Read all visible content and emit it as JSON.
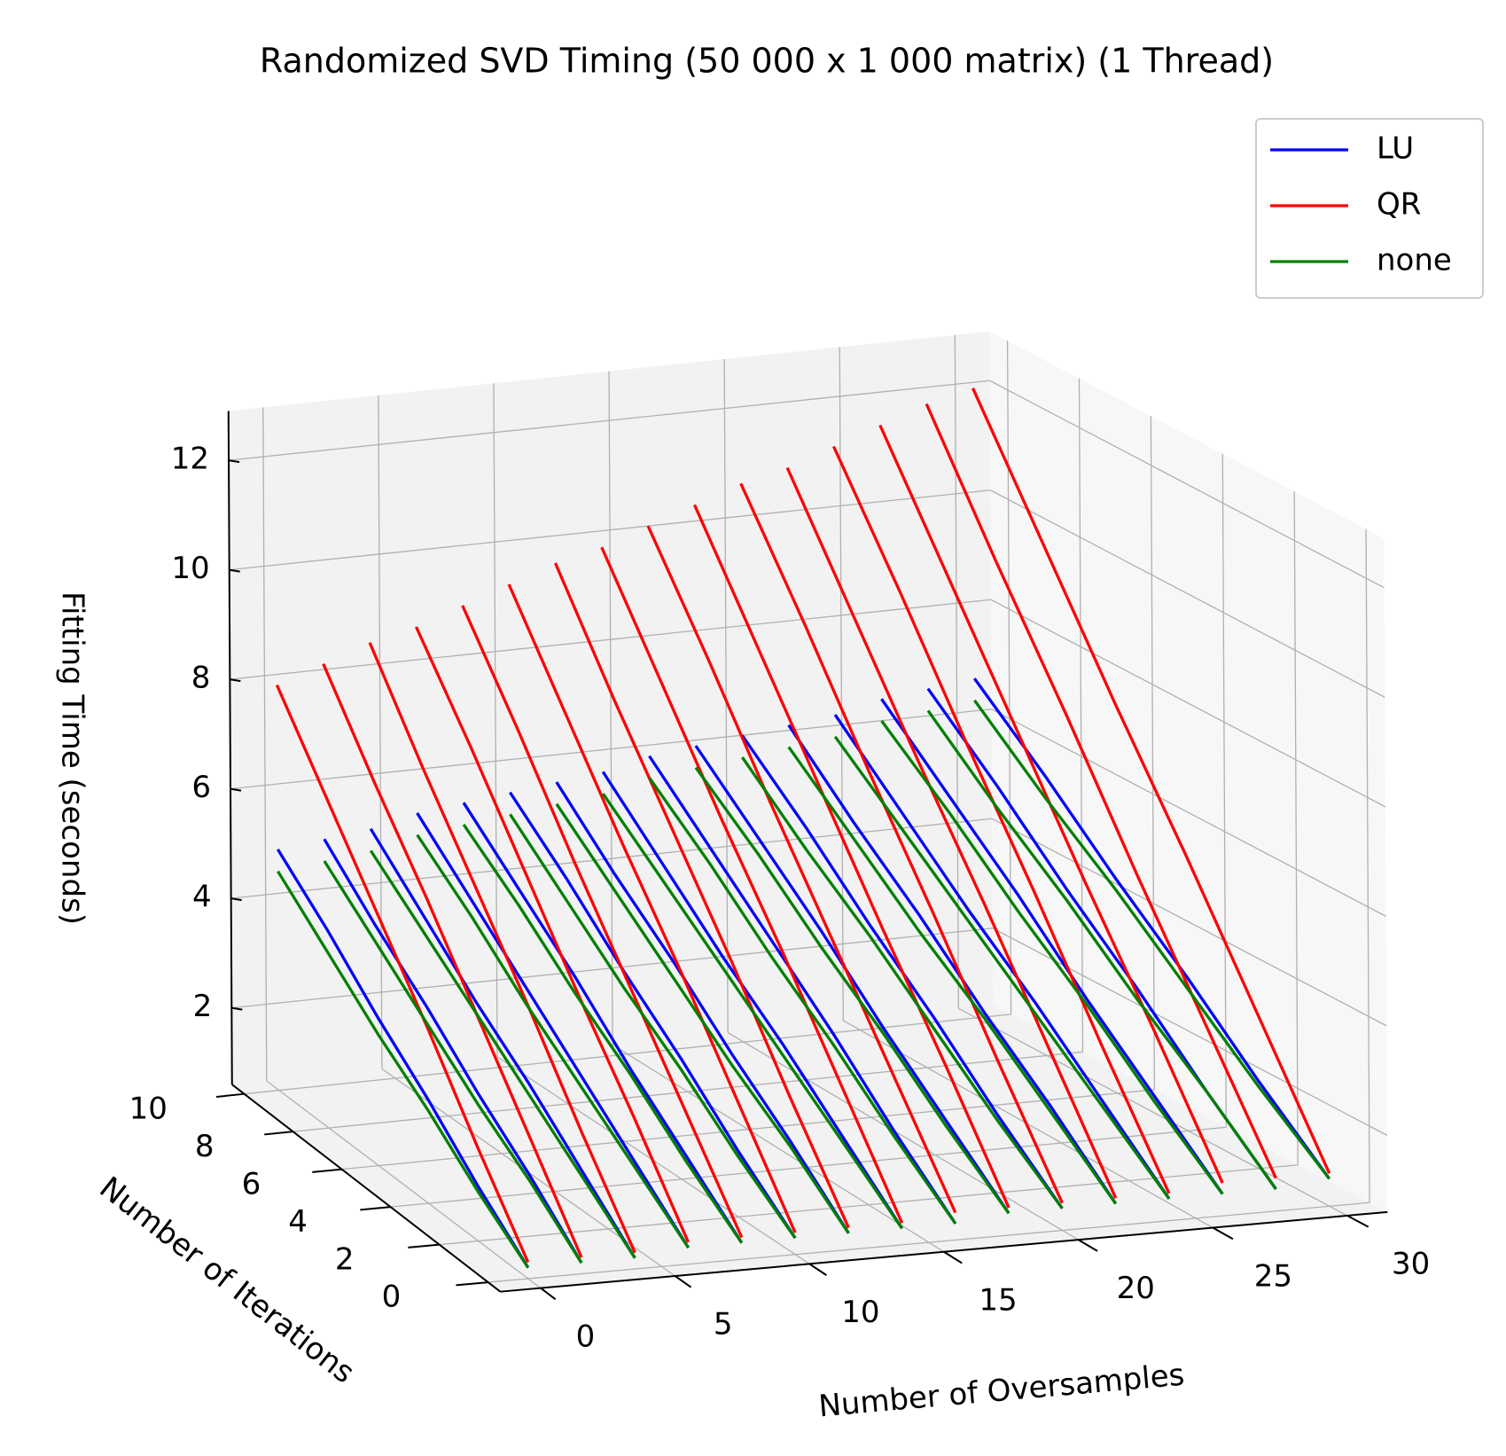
{
  "chart_data": {
    "type": "line3d",
    "title": "Randomized SVD Timing (50 000 x 1 000 matrix) (1 Thread)",
    "xlabel": "Number of Oversamples",
    "ylabel": "Number of Iterations",
    "zlabel": "Fitting Time (seconds)",
    "oversamples": [
      0,
      2,
      4,
      6,
      8,
      10,
      12,
      14,
      16,
      18,
      20,
      22,
      24,
      26,
      28,
      30
    ],
    "iterations": [
      0,
      2,
      4,
      6,
      8,
      10
    ],
    "series": [
      {
        "name": "LU",
        "color": "#0000ff",
        "values": [
          [
            0.8,
            1.6,
            2.5,
            3.3,
            4.2,
            5.0
          ],
          [
            0.8,
            1.7,
            2.5,
            3.4,
            4.2,
            5.1
          ],
          [
            0.8,
            1.7,
            2.6,
            3.4,
            4.3,
            5.2
          ],
          [
            0.9,
            1.8,
            2.7,
            3.6,
            4.5,
            5.4
          ],
          [
            0.9,
            1.8,
            2.7,
            3.7,
            4.6,
            5.5
          ],
          [
            0.9,
            1.8,
            2.8,
            3.7,
            4.7,
            5.6
          ],
          [
            0.9,
            1.9,
            2.8,
            3.8,
            4.7,
            5.7
          ],
          [
            0.9,
            1.9,
            2.9,
            3.8,
            4.8,
            5.8
          ],
          [
            0.9,
            1.9,
            3.0,
            4.0,
            5.0,
            6.0
          ],
          [
            1.0,
            2.0,
            3.0,
            4.1,
            5.1,
            6.1
          ],
          [
            1.0,
            2.0,
            3.1,
            4.1,
            5.2,
            6.2
          ],
          [
            1.0,
            2.1,
            3.1,
            4.2,
            5.2,
            6.3
          ],
          [
            1.0,
            2.1,
            3.2,
            4.2,
            5.3,
            6.4
          ],
          [
            1.0,
            2.1,
            3.2,
            4.4,
            5.5,
            6.6
          ],
          [
            1.0,
            2.1,
            3.3,
            4.4,
            5.6,
            6.7
          ],
          [
            1.1,
            2.2,
            3.4,
            4.5,
            5.7,
            6.8
          ]
        ]
      },
      {
        "name": "QR",
        "color": "#ff0000",
        "values": [
          [
            0.9,
            2.3,
            3.8,
            5.2,
            6.6,
            8.0
          ],
          [
            0.9,
            2.4,
            3.9,
            5.4,
            6.8,
            8.3
          ],
          [
            0.9,
            2.4,
            4.0,
            5.5,
            7.0,
            8.6
          ],
          [
            1.0,
            2.6,
            4.1,
            5.7,
            7.3,
            8.8
          ],
          [
            1.0,
            2.6,
            4.2,
            5.8,
            7.5,
            9.1
          ],
          [
            1.0,
            2.7,
            4.4,
            6.0,
            7.7,
            9.4
          ],
          [
            1.0,
            2.7,
            4.5,
            6.2,
            7.9,
            9.7
          ],
          [
            1.0,
            2.8,
            4.6,
            6.3,
            8.1,
            9.9
          ],
          [
            1.1,
            2.9,
            4.7,
            6.5,
            8.4,
            10.2
          ],
          [
            1.1,
            3.0,
            4.8,
            6.7,
            8.6,
            10.5
          ],
          [
            1.1,
            3.0,
            5.0,
            6.9,
            8.9,
            10.8
          ],
          [
            1.1,
            3.1,
            5.1,
            7.0,
            9.0,
            11.0
          ],
          [
            1.1,
            3.1,
            5.2,
            7.2,
            9.3,
            11.3
          ],
          [
            1.2,
            3.3,
            5.3,
            7.4,
            9.5,
            11.6
          ],
          [
            1.2,
            3.3,
            5.4,
            7.6,
            9.7,
            11.9
          ],
          [
            1.2,
            3.4,
            5.6,
            7.7,
            9.9,
            12.1
          ]
        ]
      },
      {
        "name": "none",
        "color": "#008000",
        "values": [
          [
            0.8,
            1.5,
            2.3,
            3.0,
            3.8,
            4.6
          ],
          [
            0.8,
            1.6,
            2.3,
            3.1,
            3.9,
            4.7
          ],
          [
            0.8,
            1.6,
            2.4,
            3.2,
            4.0,
            4.8
          ],
          [
            0.9,
            1.7,
            2.5,
            3.3,
            4.2,
            5.0
          ],
          [
            0.9,
            1.7,
            2.6,
            3.4,
            4.3,
            5.1
          ],
          [
            0.9,
            1.7,
            2.6,
            3.4,
            4.3,
            5.2
          ],
          [
            0.9,
            1.8,
            2.6,
            3.5,
            4.4,
            5.3
          ],
          [
            0.9,
            1.8,
            2.7,
            3.6,
            4.5,
            5.4
          ],
          [
            0.9,
            1.8,
            2.8,
            3.7,
            4.7,
            5.6
          ],
          [
            1.0,
            1.9,
            2.9,
            3.8,
            4.8,
            5.7
          ],
          [
            1.0,
            1.9,
            2.9,
            3.9,
            4.8,
            5.8
          ],
          [
            1.0,
            2.0,
            3.0,
            3.9,
            4.9,
            5.9
          ],
          [
            1.0,
            2.0,
            3.0,
            4.0,
            5.0,
            6.0
          ],
          [
            1.0,
            2.0,
            3.1,
            4.1,
            5.2,
            6.2
          ],
          [
            1.0,
            2.1,
            3.1,
            4.2,
            5.2,
            6.3
          ],
          [
            1.1,
            2.1,
            3.2,
            4.3,
            5.3,
            6.4
          ]
        ]
      }
    ],
    "xlim": [
      -1.5,
      31.5
    ],
    "xticks": [
      0,
      5,
      10,
      15,
      20,
      25,
      30
    ],
    "ylim": [
      -0.5,
      10.5
    ],
    "yticks": [
      0,
      2,
      4,
      6,
      8,
      10
    ],
    "zlim": [
      0.6,
      12.9
    ],
    "zticks": [
      2,
      4,
      6,
      8,
      10,
      12
    ],
    "grid": true,
    "legend": "upper right"
  }
}
